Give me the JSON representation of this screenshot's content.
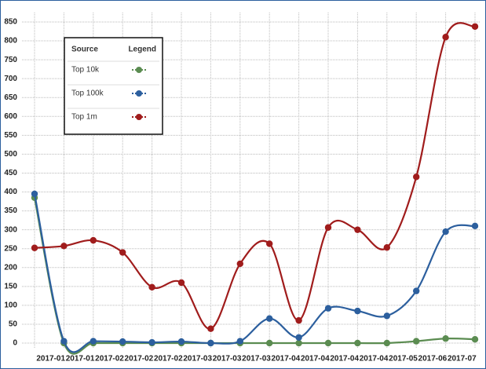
{
  "chart_data": {
    "type": "line",
    "categories": [
      null,
      "2017-01",
      "2017-01",
      "2017-02",
      "2017-02",
      "2017-02",
      "2017-03",
      "2017-03",
      "2017-03",
      "2017-04",
      "2017-04",
      "2017-04",
      "2017-04",
      "2017-05",
      "2017-06",
      "2017-07"
    ],
    "series": [
      {
        "name": "Top 10k",
        "color": "#5b8c51",
        "values": [
          385,
          0,
          0,
          0,
          0,
          0,
          0,
          0,
          0,
          0,
          0,
          0,
          0,
          5,
          12,
          10
        ]
      },
      {
        "name": "Top 100k",
        "color": "#2c5f9e",
        "values": [
          395,
          5,
          5,
          4,
          2,
          4,
          0,
          5,
          65,
          15,
          92,
          85,
          72,
          138,
          295,
          310
        ]
      },
      {
        "name": "Top 1m",
        "color": "#a01c1c",
        "values": [
          252,
          257,
          272,
          240,
          148,
          160,
          38,
          210,
          263,
          60,
          306,
          300,
          253,
          440,
          810,
          838
        ]
      }
    ],
    "ylim": [
      0,
      850
    ],
    "yticks": [
      0,
      50,
      100,
      150,
      200,
      250,
      300,
      350,
      400,
      450,
      500,
      550,
      600,
      650,
      700,
      750,
      800,
      850
    ],
    "grid": true,
    "legend": "upper left",
    "legend_headers": [
      "Source",
      "Legend"
    ]
  }
}
